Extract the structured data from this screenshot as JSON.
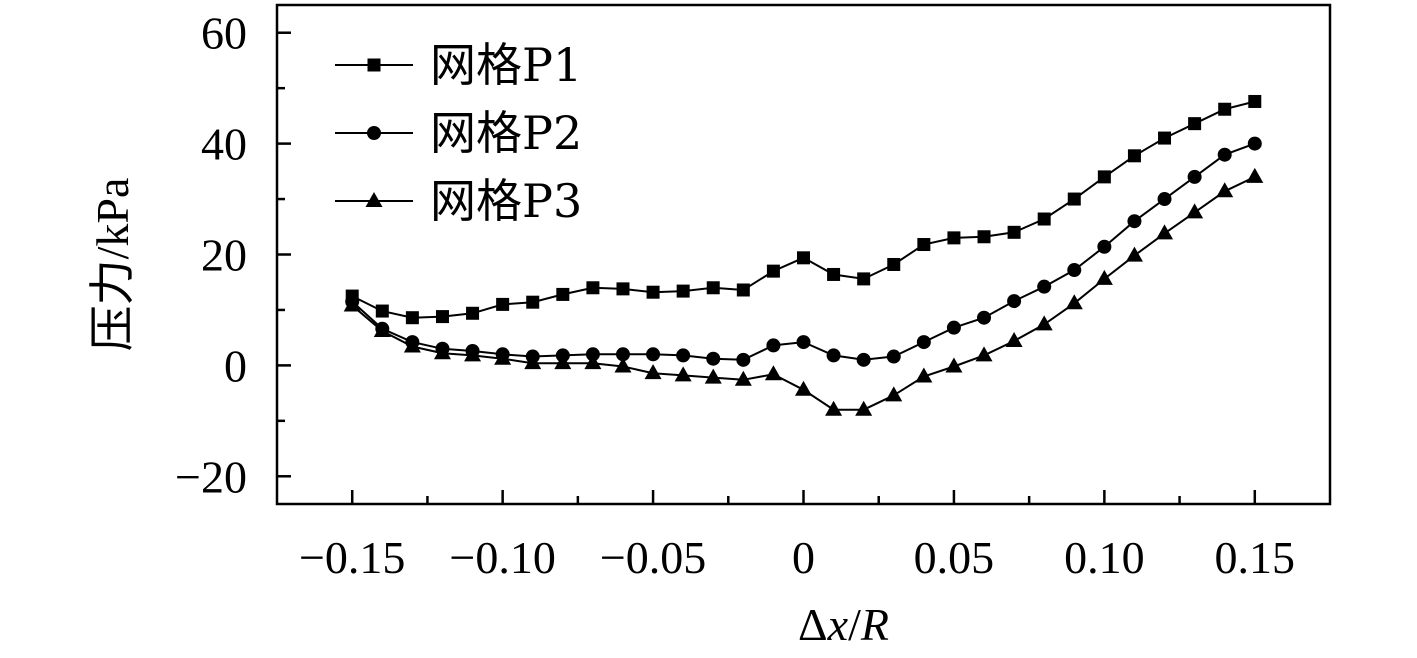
{
  "chart_data": {
    "type": "line",
    "title": "",
    "xlabel": "Δx/R",
    "xlabel_parts": [
      "Δ",
      "x",
      "/",
      "R"
    ],
    "ylabel": "压力/kPa",
    "xlim": [
      -0.175,
      0.175
    ],
    "ylim": [
      -25,
      65
    ],
    "grid": false,
    "legend_position": "top-left",
    "x_ticks": [
      -0.15,
      -0.1,
      -0.05,
      0,
      0.05,
      0.1,
      0.15
    ],
    "x_tick_labels": [
      "−0.15",
      "−0.10",
      "−0.05",
      "0",
      "0.05",
      "0.10",
      "0.15"
    ],
    "y_ticks": [
      -20,
      0,
      20,
      40,
      60
    ],
    "y_tick_labels": [
      "−20",
      "0",
      "20",
      "40",
      "60"
    ],
    "x": [
      -0.15,
      -0.14,
      -0.13,
      -0.12,
      -0.11,
      -0.1,
      -0.09,
      -0.08,
      -0.07,
      -0.06,
      -0.05,
      -0.04,
      -0.03,
      -0.02,
      -0.01,
      0.0,
      0.01,
      0.02,
      0.03,
      0.04,
      0.05,
      0.06,
      0.07,
      0.08,
      0.09,
      0.1,
      0.11,
      0.12,
      0.13,
      0.14,
      0.15
    ],
    "series": [
      {
        "name": "网格P1",
        "marker": "square",
        "values": [
          12.5,
          9.8,
          8.6,
          8.8,
          9.4,
          11.0,
          11.4,
          12.8,
          14.0,
          13.8,
          13.2,
          13.4,
          14.0,
          13.6,
          17.0,
          19.4,
          16.4,
          15.6,
          18.2,
          21.8,
          23.0,
          23.2,
          24.0,
          26.4,
          30.0,
          34.0,
          37.8,
          41.0,
          43.6,
          46.2,
          47.6
        ]
      },
      {
        "name": "网格P2",
        "marker": "circle",
        "values": [
          11.5,
          6.6,
          4.2,
          3.0,
          2.6,
          2.0,
          1.6,
          1.8,
          2.0,
          2.0,
          2.0,
          1.8,
          1.2,
          1.0,
          3.6,
          4.2,
          1.8,
          1.0,
          1.6,
          4.2,
          6.8,
          8.6,
          11.6,
          14.2,
          17.2,
          21.4,
          26.0,
          30.0,
          34.0,
          38.0,
          40.0
        ]
      },
      {
        "name": "网格P3",
        "marker": "triangle",
        "values": [
          10.8,
          6.2,
          3.4,
          2.2,
          1.8,
          1.2,
          0.4,
          0.4,
          0.4,
          -0.2,
          -1.4,
          -1.8,
          -2.2,
          -2.6,
          -1.6,
          -4.4,
          -8.0,
          -8.0,
          -5.4,
          -2.0,
          -0.2,
          1.8,
          4.4,
          7.4,
          11.2,
          15.6,
          19.8,
          23.8,
          27.6,
          31.4,
          34.0
        ]
      }
    ]
  }
}
